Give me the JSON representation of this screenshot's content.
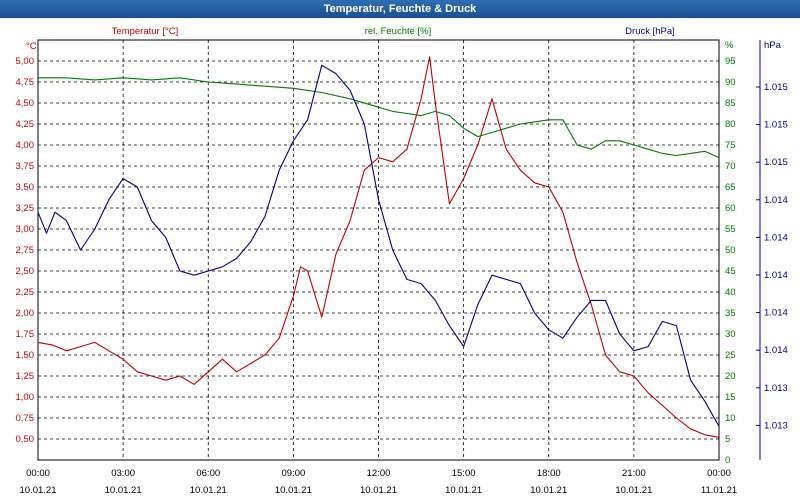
{
  "window": {
    "title": "Temperatur, Feuchte & Druck"
  },
  "colors": {
    "temperature": "#c00000",
    "humidity": "#007a00",
    "pressure": "#00008b",
    "title_bar": "#1b4f91",
    "grid": "#000000"
  },
  "chart_data": {
    "type": "line",
    "title": "Temperatur, Feuchte & Druck",
    "grid": true,
    "x_axis": {
      "range": [
        "2021-01-10 00:00",
        "2021-01-11 00:00"
      ],
      "ticks": [
        {
          "time": "00:00",
          "date": "10.01.21"
        },
        {
          "time": "03:00",
          "date": "10.01.21"
        },
        {
          "time": "06:00",
          "date": "10.01.21"
        },
        {
          "time": "09:00",
          "date": "10.01.21"
        },
        {
          "time": "12:00",
          "date": "10.01.21"
        },
        {
          "time": "15:00",
          "date": "10.01.21"
        },
        {
          "time": "18:00",
          "date": "10.01.21"
        },
        {
          "time": "21:00",
          "date": "10.01.21"
        },
        {
          "time": "00:00",
          "date": "11.01.21"
        }
      ]
    },
    "axes": {
      "temperature": {
        "label": "Temperatur [°C]",
        "unit": "°C",
        "position": "left",
        "ylim": [
          0.25,
          5.25
        ],
        "ticks": [
          "5,00",
          "4,75",
          "4,50",
          "4,25",
          "4,00",
          "3,75",
          "3,50",
          "3,25",
          "3,00",
          "2,75",
          "2,50",
          "2,25",
          "2,00",
          "1,75",
          "1,50",
          "1,25",
          "1,00",
          "0,75",
          "0,50"
        ]
      },
      "humidity": {
        "label": "rel. Feuchte [%]",
        "unit": "%",
        "position": "right",
        "ylim": [
          0,
          100
        ],
        "ticks": [
          "95",
          "90",
          "85",
          "80",
          "75",
          "70",
          "65",
          "60",
          "55",
          "50",
          "45",
          "40",
          "35",
          "30",
          "25",
          "20",
          "15",
          "10",
          "5",
          "0"
        ]
      },
      "pressure": {
        "label": "Druck [hPa]",
        "unit": "hPa",
        "position": "right-outer",
        "ticks": [
          "1.015",
          "1.015",
          "1.015",
          "1.014",
          "1.014",
          "1.014",
          "1.014",
          "1.014",
          "1.013",
          "1.013"
        ]
      }
    },
    "series": [
      {
        "name": "Temperatur [°C]",
        "axis": "temperature",
        "x_hours": [
          0,
          0.5,
          1,
          1.5,
          2,
          2.5,
          3,
          3.5,
          4,
          4.5,
          5,
          5.5,
          6,
          6.5,
          7,
          7.5,
          8,
          8.5,
          9,
          9.25,
          9.5,
          10,
          10.5,
          11,
          11.5,
          12,
          12.5,
          13,
          13.5,
          13.8,
          14,
          14.5,
          15,
          15.5,
          16,
          16.5,
          17,
          17.5,
          18,
          18.5,
          19,
          19.5,
          20,
          20.5,
          21,
          21.5,
          22,
          22.5,
          23,
          23.5,
          24
        ],
        "values": [
          1.65,
          1.62,
          1.55,
          1.6,
          1.65,
          1.55,
          1.45,
          1.3,
          1.25,
          1.2,
          1.25,
          1.15,
          1.3,
          1.45,
          1.3,
          1.4,
          1.5,
          1.7,
          2.2,
          2.55,
          2.5,
          1.95,
          2.7,
          3.1,
          3.7,
          3.85,
          3.8,
          3.95,
          4.55,
          5.05,
          4.5,
          3.3,
          3.6,
          4.0,
          4.55,
          3.95,
          3.7,
          3.55,
          3.5,
          3.2,
          2.6,
          2.1,
          1.5,
          1.3,
          1.25,
          1.05,
          0.9,
          0.75,
          0.62,
          0.55,
          0.52
        ]
      },
      {
        "name": "rel. Feuchte [%]",
        "axis": "humidity",
        "x_hours": [
          0,
          1,
          2,
          3,
          4,
          5,
          6,
          7,
          8,
          9,
          10,
          11,
          12,
          12.5,
          13,
          13.5,
          14,
          14.5,
          15,
          15.5,
          16,
          16.5,
          17,
          17.5,
          18,
          18.5,
          19,
          19.5,
          20,
          20.5,
          21,
          21.5,
          22,
          22.5,
          23,
          23.5,
          24
        ],
        "values": [
          91,
          91,
          90.5,
          91,
          90.5,
          91,
          90,
          89.5,
          89,
          88.5,
          87.5,
          86,
          84,
          83,
          82.5,
          82,
          83,
          82,
          79,
          77,
          78,
          79,
          80,
          80.5,
          81,
          81,
          75,
          74,
          76,
          76,
          75,
          74,
          73,
          72.5,
          73,
          73.5,
          72
        ]
      },
      {
        "name": "Druck [hPa]",
        "axis": "pressure",
        "scale": "humidity",
        "x_hours": [
          0,
          0.3,
          0.6,
          1,
          1.5,
          2,
          2.5,
          3,
          3.5,
          4,
          4.5,
          5,
          5.5,
          6,
          6.5,
          7,
          7.5,
          8,
          8.5,
          9,
          9.5,
          10,
          10.5,
          11,
          11.5,
          12,
          12.5,
          13,
          13.5,
          14,
          14.5,
          15,
          15.5,
          16,
          16.5,
          17,
          17.5,
          18,
          18.5,
          19,
          19.5,
          20,
          20.5,
          21,
          21.5,
          22,
          22.5,
          23,
          23.5,
          24
        ],
        "values": [
          59,
          54,
          59,
          57,
          50,
          55,
          62,
          67,
          65,
          57,
          53,
          45,
          44,
          45,
          46,
          48,
          52,
          58,
          69,
          76,
          81,
          94,
          92,
          88,
          80,
          62,
          50,
          43,
          42,
          38,
          32,
          27,
          37,
          44,
          43,
          42,
          35,
          31,
          29,
          34,
          38,
          38,
          30,
          26,
          27,
          33,
          32,
          19,
          14,
          8
        ]
      }
    ]
  }
}
